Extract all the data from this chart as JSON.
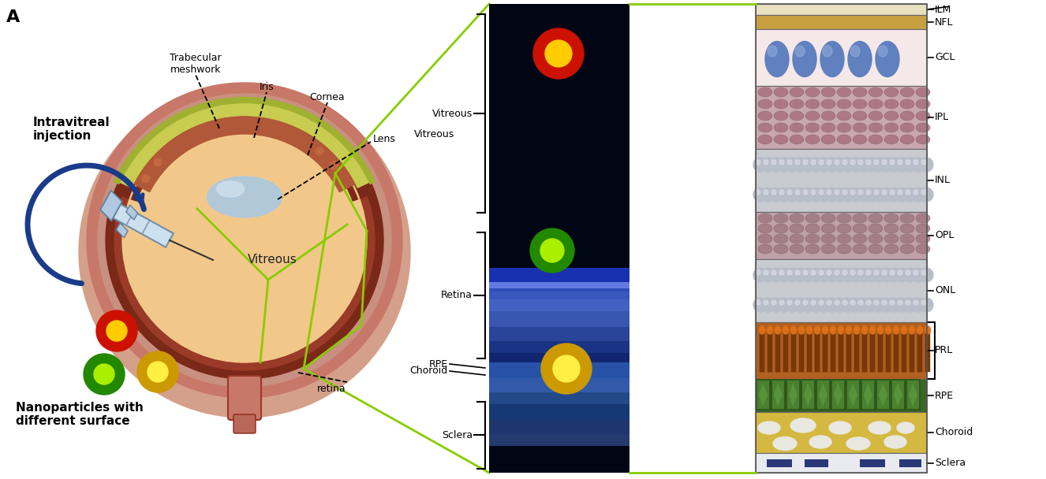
{
  "title": "A",
  "bg_color": "#ffffff",
  "fig_width": 13.26,
  "fig_height": 6.08,
  "left_labels": {
    "intravitreal": "Intravitreal\ninjection",
    "nanoparticles": "Nanoparticles with\ndifferent surface"
  },
  "eye_annotations": {
    "trabecular_meshwork": "Trabecular\nmeshwork",
    "iris": "Iris",
    "cornea": "Cornea",
    "lens": "Lens",
    "vitreous_label": "Vitreous",
    "vitreous_center": "Vitreous",
    "retina_label": "retina"
  },
  "middle_labels": {
    "vitreous": "Vitreous",
    "retina": "Retina",
    "rpe": "RPE",
    "choroid": "Choroid",
    "sclera": "Sclera"
  },
  "right_layers": [
    "ILM",
    "NFL",
    "GCL",
    "IPL",
    "INL",
    "OPL",
    "ONL",
    "PRL",
    "RPE",
    "Choroid",
    "Sclera"
  ],
  "connector_color": "#88cc00",
  "arrow_color": "#1a3a8a"
}
